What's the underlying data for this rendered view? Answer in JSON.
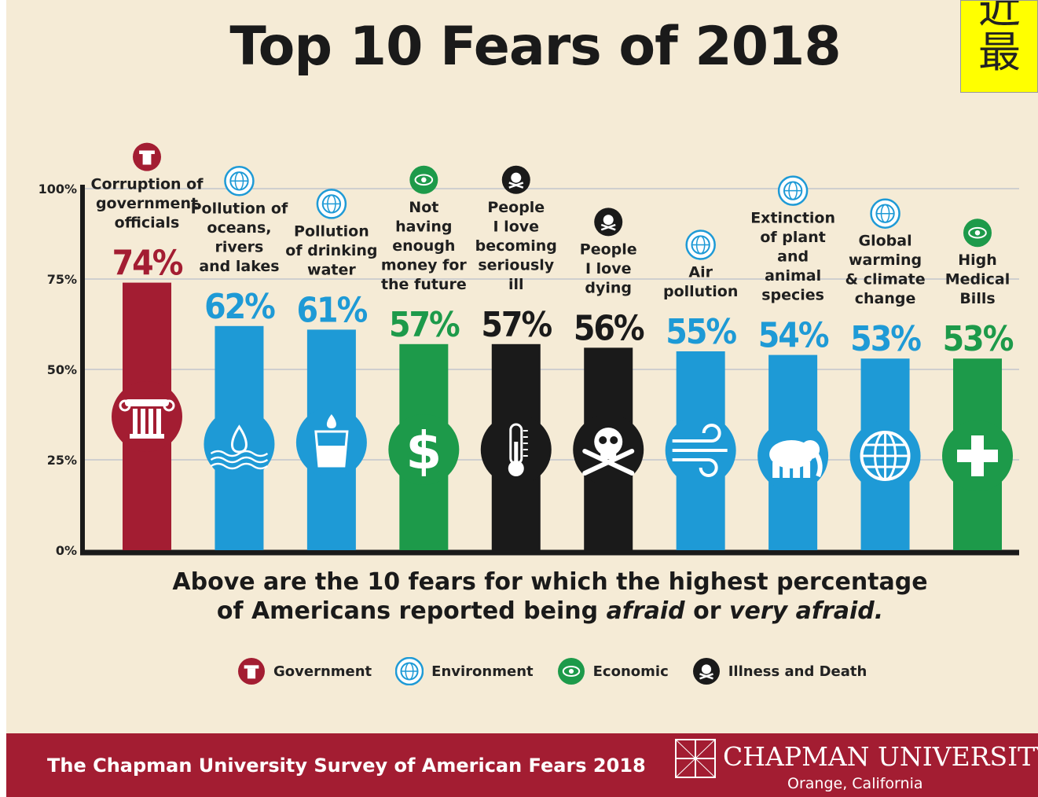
{
  "title": "Top 10 Fears of 2018",
  "corner_text": [
    "近",
    "最"
  ],
  "colors": {
    "Government": "#a31d32",
    "Environment": "#1e9ad6",
    "Economic": "#1d9a4a",
    "Illness and Death": "#1a1a1a"
  },
  "chart_data": {
    "type": "bar",
    "ylim": [
      0,
      100
    ],
    "yticks": [
      "100%",
      "75%",
      "50%",
      "25%",
      "0%"
    ],
    "categories": [
      "Corruption of government officials",
      "Pollution of oceans, rivers and lakes",
      "Pollution of drinking water",
      "Not having enough money for the future",
      "People I love becoming seriously ill",
      "People I love dying",
      "Air pollution",
      "Extinction of plant and animal species",
      "Global warming & climate change",
      "High Medical Bills"
    ],
    "values": [
      74,
      62,
      61,
      57,
      57,
      56,
      55,
      54,
      53,
      53
    ],
    "value_labels": [
      "74%",
      "62%",
      "61%",
      "57%",
      "57%",
      "56%",
      "55%",
      "54%",
      "53%",
      "53%"
    ],
    "label_lines": [
      [
        "Corruption of",
        "government",
        "officials"
      ],
      [
        "Pollution of",
        "oceans,",
        "rivers",
        "and lakes"
      ],
      [
        "Pollution",
        "of drinking",
        "water"
      ],
      [
        "Not",
        "having",
        "enough",
        "money for",
        "the future"
      ],
      [
        "People",
        "I love",
        "becoming",
        "seriously",
        "ill"
      ],
      [
        "People",
        "I love",
        "dying"
      ],
      [
        "Air",
        "pollution"
      ],
      [
        "Extinction",
        "of plant",
        "and",
        "animal",
        "species"
      ],
      [
        "Global",
        "warming",
        "& climate",
        "change"
      ],
      [
        "High",
        "Medical",
        "Bills"
      ]
    ],
    "groups": [
      "Government",
      "Environment",
      "Environment",
      "Economic",
      "Illness and Death",
      "Illness and Death",
      "Environment",
      "Environment",
      "Environment",
      "Economic"
    ],
    "icons": [
      "column-icon",
      "water-drop-icon",
      "water-glass-icon",
      "dollar-icon",
      "thermometer-icon",
      "skull-crossbones-icon",
      "wind-icon",
      "elephant-icon",
      "globe-icon",
      "medical-cross-icon"
    ],
    "legend": [
      "Government",
      "Environment",
      "Economic",
      "Illness and Death"
    ],
    "legend_placement": "bottom",
    "grid": true
  },
  "caption": {
    "line1": "Above are the 10 fears for which the highest percentage",
    "line2_pre": "of Americans reported being ",
    "line2_em1": "afraid",
    "line2_mid": " or ",
    "line2_em2": "very afraid."
  },
  "footer": {
    "survey": "The Chapman University Survey of American Fears 2018",
    "university": "CHAPMAN UNIVERSITY",
    "location": "Orange, California"
  }
}
